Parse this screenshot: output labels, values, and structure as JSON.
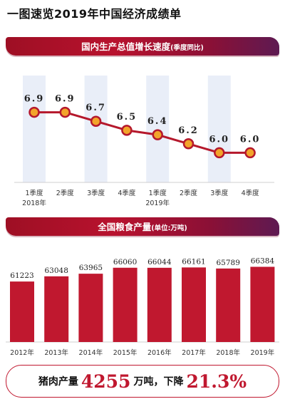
{
  "title": "一图速览2019年中国经济成绩单",
  "section1": {
    "title": "国内生产总值增长速度",
    "subtitle": "(季度同比)"
  },
  "section2": {
    "title": "全国粮食产量",
    "subtitle": "(单位:万吨)"
  },
  "pork": {
    "prefix": "猪肉产量",
    "value": "4255",
    "mid": "万吨，下降",
    "change": "21.3%"
  },
  "colors": {
    "accent": "#c0182f",
    "line": "#b5182c",
    "dot": "#f2a42a",
    "band": "#e9eef8"
  },
  "chart_data": [
    {
      "type": "line",
      "categories": [
        "1季度",
        "2季度",
        "3季度",
        "4季度",
        "1季度",
        "2季度",
        "3季度",
        "4季度"
      ],
      "year_labels": [
        {
          "label": "2018年",
          "index": 0
        },
        {
          "label": "2019年",
          "index": 4
        }
      ],
      "values": [
        6.9,
        6.9,
        6.7,
        6.5,
        6.4,
        6.2,
        6.0,
        6.0
      ],
      "value_labels": [
        "6.9",
        "6.9",
        "6.7",
        "6.5",
        "6.4",
        "6.2",
        "6.0",
        "6.0"
      ],
      "title": "国内生产总值增长速度(季度同比)",
      "ylim": [
        5.5,
        7.4
      ]
    },
    {
      "type": "bar",
      "categories": [
        "2012年",
        "2013年",
        "2014年",
        "2015年",
        "2016年",
        "2017年",
        "2018年",
        "2019年"
      ],
      "values": [
        61223,
        63048,
        63965,
        66060,
        66044,
        66161,
        65789,
        66384
      ],
      "title": "全国粮食产量(单位:万吨)",
      "ylim": [
        40000,
        70000
      ]
    }
  ]
}
